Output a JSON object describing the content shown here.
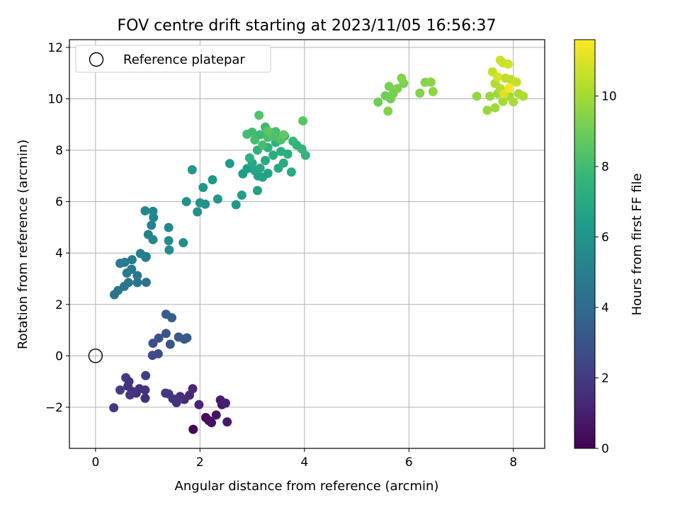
{
  "chart_data": {
    "type": "scatter",
    "title": "FOV centre drift starting at 2023/11/05 16:56:37",
    "xlabel": "Angular distance from reference (arcmin)",
    "ylabel": "Rotation from reference (arcmin)",
    "xlim": [
      -0.5,
      8.6
    ],
    "ylim": [
      -3.6,
      12.3
    ],
    "xticks": [
      0,
      2,
      4,
      6,
      8
    ],
    "xtick_labels": [
      "0",
      "2",
      "4",
      "6",
      "8"
    ],
    "yticks": [
      -2,
      0,
      2,
      4,
      6,
      8,
      10,
      12
    ],
    "ytick_labels": [
      "−2",
      "0",
      "2",
      "4",
      "6",
      "8",
      "10",
      "12"
    ],
    "grid": true,
    "legend": {
      "location": "upper-left",
      "entries": [
        {
          "label": "Reference platepar",
          "marker": "open-circle",
          "x": 0,
          "y": 0
        }
      ]
    },
    "colorbar": {
      "label": "Hours from first FF file",
      "range": [
        0,
        11.6
      ],
      "ticks": [
        0,
        2,
        4,
        6,
        8,
        10
      ],
      "tick_labels": [
        "0",
        "2",
        "4",
        "6",
        "8",
        "10"
      ],
      "colormap": "viridis"
    },
    "colormap_stops": [
      "#440154",
      "#482878",
      "#3e4989",
      "#31688e",
      "#26828e",
      "#1f9e89",
      "#35b779",
      "#6ece58",
      "#b5de2b",
      "#fde725"
    ],
    "points": [
      [
        1.87,
        -2.86,
        0.1
      ],
      [
        2.11,
        -2.4,
        0.3
      ],
      [
        2.17,
        -2.52,
        0.4
      ],
      [
        2.22,
        -2.6,
        0.5
      ],
      [
        2.31,
        -2.3,
        0.6
      ],
      [
        2.42,
        -1.9,
        0.7
      ],
      [
        2.52,
        -2.57,
        0.8
      ],
      [
        2.39,
        -1.72,
        0.9
      ],
      [
        2.49,
        -1.84,
        1.0
      ],
      [
        1.98,
        -1.9,
        1.2
      ],
      [
        1.86,
        -1.28,
        1.3
      ],
      [
        1.8,
        -1.53,
        1.4
      ],
      [
        1.7,
        -1.7,
        1.5
      ],
      [
        1.62,
        -1.58,
        1.6
      ],
      [
        1.55,
        -1.82,
        1.7
      ],
      [
        1.48,
        -1.67,
        1.8
      ],
      [
        1.4,
        -1.48,
        1.9
      ],
      [
        1.34,
        -1.45,
        2.0
      ],
      [
        0.95,
        -1.33,
        1.6
      ],
      [
        0.95,
        -1.65,
        1.5
      ],
      [
        0.84,
        -1.28,
        1.7
      ],
      [
        0.78,
        -1.45,
        1.6
      ],
      [
        0.7,
        -1.38,
        1.8
      ],
      [
        0.66,
        -1.52,
        1.9
      ],
      [
        0.62,
        -1.18,
        1.7
      ],
      [
        0.58,
        -0.85,
        2.0
      ],
      [
        0.64,
        -1.0,
        1.8
      ],
      [
        0.47,
        -1.33,
        2.1
      ],
      [
        0.35,
        -2.02,
        1.9
      ],
      [
        0.96,
        -0.77,
        2.2
      ],
      [
        1.09,
        0.02,
        2.6
      ],
      [
        1.2,
        0.08,
        2.7
      ],
      [
        1.1,
        0.49,
        2.8
      ],
      [
        1.21,
        0.69,
        2.9
      ],
      [
        1.43,
        0.45,
        3.0
      ],
      [
        1.35,
        0.87,
        3.1
      ],
      [
        1.59,
        0.73,
        3.2
      ],
      [
        1.7,
        0.65,
        3.3
      ],
      [
        1.75,
        0.7,
        3.2
      ],
      [
        1.35,
        1.62,
        3.4
      ],
      [
        1.46,
        1.48,
        3.5
      ],
      [
        0.36,
        2.38,
        4.4
      ],
      [
        0.43,
        2.54,
        4.5
      ],
      [
        0.55,
        2.7,
        4.5
      ],
      [
        0.63,
        2.85,
        4.6
      ],
      [
        0.8,
        2.85,
        4.4
      ],
      [
        0.97,
        2.86,
        4.3
      ],
      [
        0.8,
        3.12,
        4.6
      ],
      [
        0.69,
        3.37,
        4.7
      ],
      [
        0.6,
        3.22,
        4.8
      ],
      [
        0.47,
        3.6,
        4.7
      ],
      [
        0.56,
        3.64,
        4.8
      ],
      [
        0.7,
        3.74,
        4.9
      ],
      [
        0.86,
        3.98,
        5.0
      ],
      [
        0.97,
        3.86,
        5.1
      ],
      [
        0.96,
        3.83,
        5.0
      ],
      [
        1.01,
        4.72,
        5.2
      ],
      [
        1.1,
        4.52,
        5.3
      ],
      [
        1.07,
        5.08,
        5.3
      ],
      [
        1.11,
        5.38,
        5.4
      ],
      [
        0.95,
        5.64,
        5.4
      ],
      [
        1.1,
        5.62,
        5.5
      ],
      [
        1.4,
        4.99,
        5.5
      ],
      [
        1.4,
        4.48,
        5.6
      ],
      [
        1.41,
        4.12,
        5.6
      ],
      [
        1.68,
        4.4,
        5.7
      ],
      [
        1.74,
        6.0,
        5.9
      ],
      [
        1.95,
        5.6,
        5.9
      ],
      [
        2.0,
        5.95,
        6.0
      ],
      [
        2.1,
        5.9,
        6.0
      ],
      [
        2.06,
        6.55,
        6.1
      ],
      [
        2.24,
        6.85,
        6.1
      ],
      [
        2.34,
        6.1,
        6.2
      ],
      [
        1.85,
        7.24,
        6.2
      ],
      [
        2.57,
        7.48,
        6.3
      ],
      [
        2.69,
        5.88,
        6.3
      ],
      [
        2.8,
        6.25,
        6.4
      ],
      [
        2.82,
        7.08,
        6.4
      ],
      [
        2.9,
        7.28,
        6.5
      ],
      [
        3.1,
        6.43,
        6.6
      ],
      [
        3.11,
        7.0,
        6.6
      ],
      [
        3.2,
        6.95,
        6.7
      ],
      [
        3.3,
        7.1,
        6.7
      ],
      [
        3.05,
        7.2,
        6.8
      ],
      [
        3.0,
        7.5,
        6.9
      ],
      [
        3.15,
        7.3,
        6.9
      ],
      [
        3.25,
        7.6,
        7.0
      ],
      [
        3.5,
        7.3,
        7.0
      ],
      [
        3.6,
        7.5,
        7.1
      ],
      [
        3.75,
        7.15,
        7.1
      ],
      [
        3.4,
        7.8,
        7.2
      ],
      [
        3.55,
        7.95,
        7.2
      ],
      [
        3.68,
        7.85,
        7.3
      ],
      [
        2.95,
        7.7,
        7.3
      ],
      [
        3.1,
        8.0,
        7.4
      ],
      [
        3.3,
        8.1,
        7.4
      ],
      [
        3.45,
        8.3,
        7.5
      ],
      [
        3.85,
        8.2,
        7.5
      ],
      [
        3.95,
        8.05,
        7.6
      ],
      [
        4.02,
        7.8,
        7.6
      ],
      [
        3.78,
        8.35,
        7.7
      ],
      [
        3.62,
        8.55,
        7.7
      ],
      [
        3.5,
        8.45,
        7.8
      ],
      [
        3.38,
        8.68,
        7.8
      ],
      [
        3.25,
        8.9,
        7.9
      ],
      [
        3.15,
        8.6,
        7.9
      ],
      [
        3.0,
        8.7,
        8.0
      ],
      [
        2.9,
        8.62,
        8.0
      ],
      [
        3.05,
        8.4,
        8.1
      ],
      [
        3.2,
        8.2,
        8.1
      ],
      [
        3.3,
        8.5,
        8.2
      ],
      [
        3.45,
        8.72,
        8.2
      ],
      [
        3.55,
        8.4,
        8.3
      ],
      [
        3.4,
        8.55,
        8.3
      ],
      [
        3.13,
        9.36,
        8.4
      ],
      [
        3.97,
        9.14,
        8.5
      ],
      [
        3.3,
        8.75,
        8.6
      ],
      [
        3.6,
        8.6,
        8.7
      ],
      [
        5.41,
        9.87,
        9.0
      ],
      [
        5.55,
        10.12,
        9.1
      ],
      [
        5.65,
        10.0,
        9.1
      ],
      [
        5.7,
        10.2,
        9.2
      ],
      [
        5.62,
        10.48,
        9.2
      ],
      [
        5.78,
        10.4,
        9.3
      ],
      [
        5.9,
        10.6,
        9.3
      ],
      [
        5.86,
        10.8,
        9.4
      ],
      [
        5.6,
        9.52,
        9.4
      ],
      [
        6.21,
        10.22,
        9.4
      ],
      [
        6.31,
        10.64,
        9.5
      ],
      [
        6.42,
        10.65,
        9.5
      ],
      [
        6.46,
        10.28,
        9.6
      ],
      [
        7.3,
        10.1,
        9.7
      ],
      [
        7.5,
        9.55,
        9.8
      ],
      [
        7.55,
        10.1,
        9.8
      ],
      [
        7.65,
        9.65,
        9.9
      ],
      [
        7.7,
        10.2,
        9.9
      ],
      [
        7.8,
        9.9,
        10.0
      ],
      [
        7.92,
        10.1,
        10.0
      ],
      [
        8.0,
        9.88,
        10.1
      ],
      [
        8.1,
        10.2,
        10.1
      ],
      [
        8.19,
        10.1,
        10.2
      ],
      [
        7.65,
        10.6,
        10.2
      ],
      [
        7.75,
        10.4,
        10.3
      ],
      [
        7.85,
        10.8,
        10.4
      ],
      [
        7.95,
        10.75,
        10.5
      ],
      [
        8.06,
        10.65,
        10.6
      ],
      [
        7.6,
        11.05,
        10.6
      ],
      [
        7.75,
        11.5,
        10.7
      ],
      [
        7.8,
        11.4,
        10.7
      ],
      [
        7.9,
        11.35,
        10.8
      ],
      [
        7.7,
        10.85,
        10.9
      ],
      [
        7.82,
        10.2,
        11.0
      ],
      [
        7.92,
        10.42,
        11.5
      ]
    ]
  }
}
